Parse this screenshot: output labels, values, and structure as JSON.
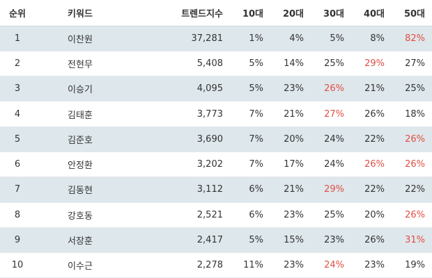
{
  "table": {
    "columns": [
      "순위",
      "키워드",
      "트렌드지수",
      "10대",
      "20대",
      "30대",
      "40대",
      "50대"
    ],
    "highlight_color": "#e04f43",
    "rows": [
      {
        "rank": "1",
        "keyword": "이찬원",
        "score": "37,281",
        "ages": [
          "1%",
          "4%",
          "5%",
          "8%",
          "82%"
        ],
        "highlight": 4
      },
      {
        "rank": "2",
        "keyword": "전현무",
        "score": "5,408",
        "ages": [
          "5%",
          "14%",
          "25%",
          "29%",
          "27%"
        ],
        "highlight": 3
      },
      {
        "rank": "3",
        "keyword": "이승기",
        "score": "4,095",
        "ages": [
          "5%",
          "23%",
          "26%",
          "21%",
          "25%"
        ],
        "highlight": 2
      },
      {
        "rank": "4",
        "keyword": "김태훈",
        "score": "3,773",
        "ages": [
          "7%",
          "21%",
          "27%",
          "26%",
          "18%"
        ],
        "highlight": 2
      },
      {
        "rank": "5",
        "keyword": "김준호",
        "score": "3,690",
        "ages": [
          "7%",
          "20%",
          "24%",
          "22%",
          "26%"
        ],
        "highlight": 4
      },
      {
        "rank": "6",
        "keyword": "안정환",
        "score": "3,202",
        "ages": [
          "7%",
          "17%",
          "24%",
          "26%",
          "26%"
        ],
        "highlight": [
          3,
          4
        ]
      },
      {
        "rank": "7",
        "keyword": "김동현",
        "score": "3,112",
        "ages": [
          "6%",
          "21%",
          "29%",
          "22%",
          "22%"
        ],
        "highlight": 2
      },
      {
        "rank": "8",
        "keyword": "강호동",
        "score": "2,521",
        "ages": [
          "6%",
          "23%",
          "25%",
          "20%",
          "26%"
        ],
        "highlight": 4
      },
      {
        "rank": "9",
        "keyword": "서장훈",
        "score": "2,417",
        "ages": [
          "5%",
          "15%",
          "23%",
          "26%",
          "31%"
        ],
        "highlight": 4
      },
      {
        "rank": "10",
        "keyword": "이수근",
        "score": "2,278",
        "ages": [
          "11%",
          "23%",
          "24%",
          "23%",
          "19%"
        ],
        "highlight": 2
      }
    ]
  }
}
